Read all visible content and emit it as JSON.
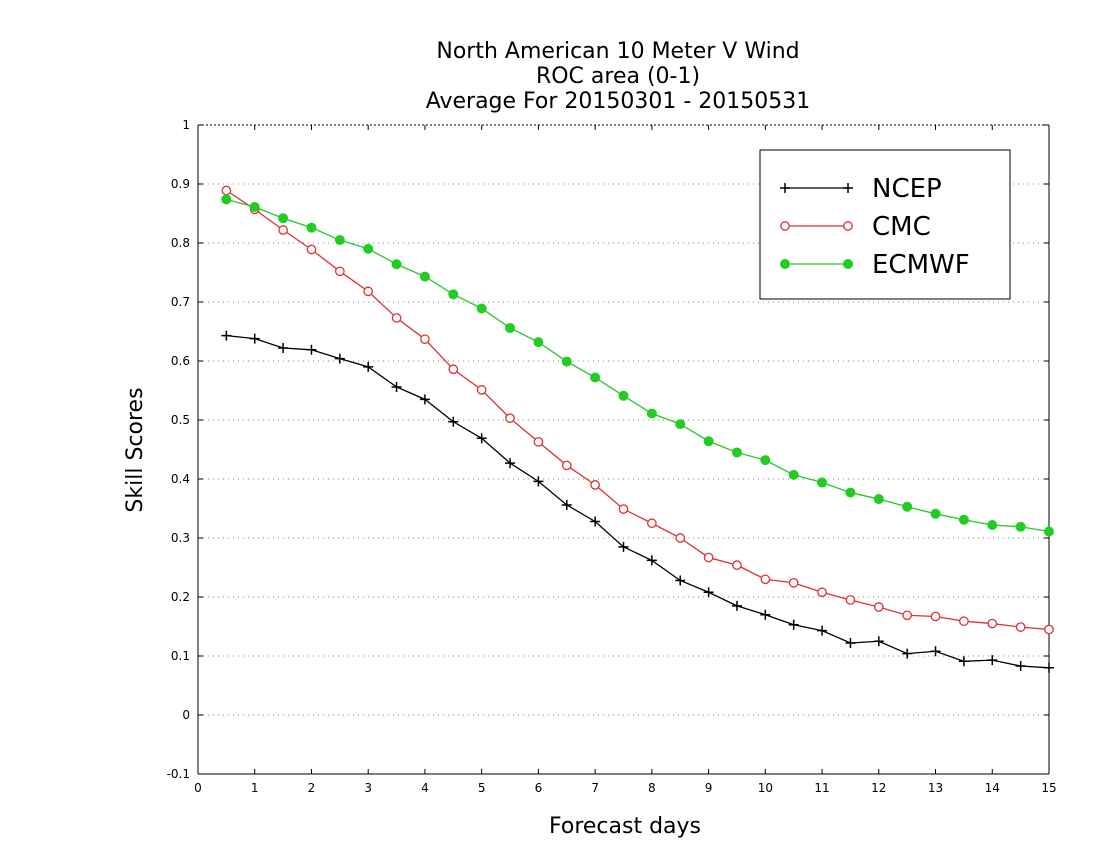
{
  "chart_data": {
    "type": "line",
    "title_lines": [
      "North American 10 Meter V Wind",
      "ROC area (0-1)",
      "Average For 20150301 - 20150531"
    ],
    "xlabel": "Forecast days",
    "ylabel": "Skill Scores",
    "xlim": [
      0,
      15
    ],
    "ylim": [
      -0.1,
      1
    ],
    "x_ticks": [
      "0",
      "1",
      "2",
      "3",
      "4",
      "5",
      "6",
      "7",
      "8",
      "9",
      "10",
      "11",
      "12",
      "13",
      "14",
      "15"
    ],
    "y_ticks": [
      "-0.1",
      "0",
      "0.1",
      "0.2",
      "0.3",
      "0.4",
      "0.5",
      "0.6",
      "0.7",
      "0.8",
      "0.9",
      "1"
    ],
    "grid": true,
    "legend_position": "top-right",
    "x": [
      0.5,
      1,
      1.5,
      2,
      2.5,
      3,
      3.5,
      4,
      4.5,
      5,
      5.5,
      6,
      6.5,
      7,
      7.5,
      8,
      8.5,
      9,
      9.5,
      10,
      10.5,
      11,
      11.5,
      12,
      12.5,
      13,
      13.5,
      14,
      14.5,
      15
    ],
    "series": [
      {
        "name": "NCEP",
        "color": "#000000",
        "marker": "plus",
        "values": [
          0.643,
          0.638,
          0.622,
          0.619,
          0.604,
          0.59,
          0.556,
          0.535,
          0.497,
          0.469,
          0.427,
          0.396,
          0.356,
          0.328,
          0.285,
          0.262,
          0.228,
          0.208,
          0.185,
          0.17,
          0.153,
          0.143,
          0.122,
          0.125,
          0.104,
          0.108,
          0.091,
          0.093,
          0.083,
          0.08
        ]
      },
      {
        "name": "CMC",
        "color": "#e03030",
        "marker": "open-circle",
        "values": [
          0.889,
          0.857,
          0.822,
          0.789,
          0.752,
          0.718,
          0.673,
          0.637,
          0.586,
          0.551,
          0.503,
          0.463,
          0.423,
          0.39,
          0.349,
          0.325,
          0.3,
          0.267,
          0.254,
          0.23,
          0.224,
          0.208,
          0.195,
          0.183,
          0.169,
          0.167,
          0.159,
          0.155,
          0.149,
          0.145
        ]
      },
      {
        "name": "ECMWF",
        "color": "#22cc22",
        "marker": "filled-circle",
        "values": [
          0.874,
          0.861,
          0.842,
          0.826,
          0.805,
          0.79,
          0.764,
          0.743,
          0.713,
          0.689,
          0.656,
          0.632,
          0.599,
          0.572,
          0.541,
          0.511,
          0.493,
          0.464,
          0.445,
          0.432,
          0.407,
          0.394,
          0.377,
          0.366,
          0.353,
          0.341,
          0.331,
          0.322,
          0.319,
          0.311
        ]
      }
    ]
  }
}
